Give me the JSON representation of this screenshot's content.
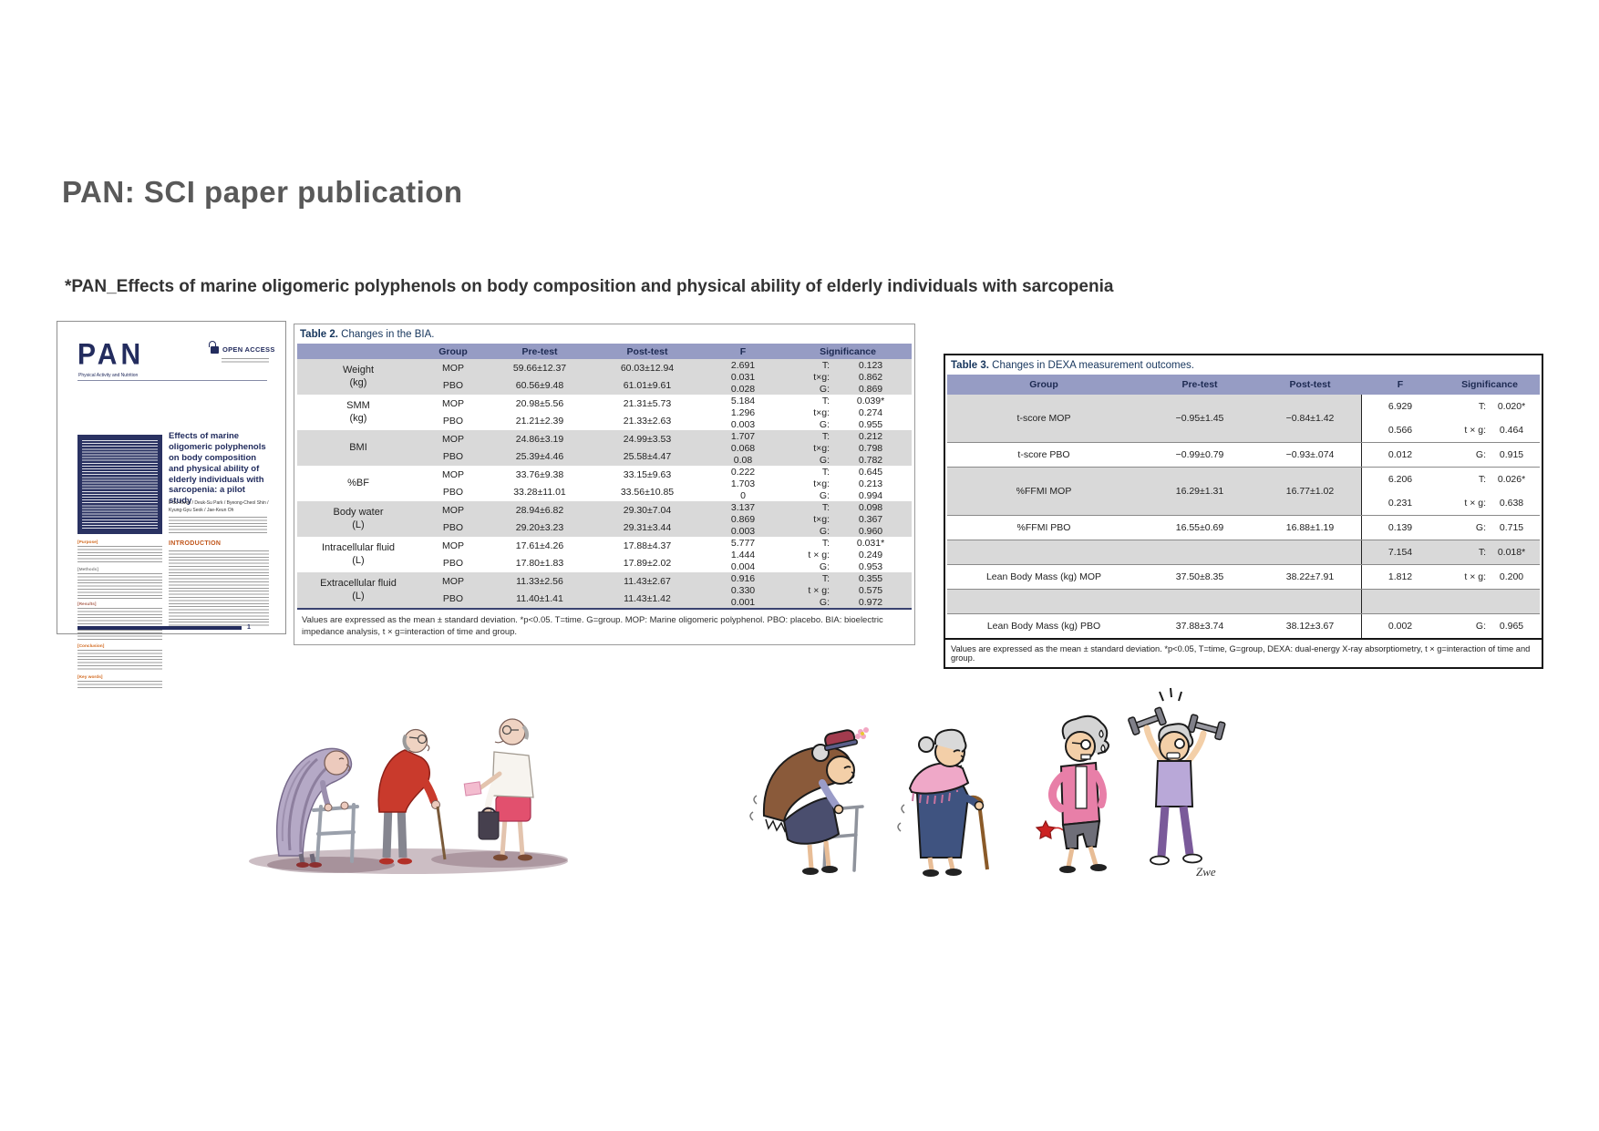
{
  "page": {
    "title": "PAN: SCI paper publication",
    "subtitle": "*PAN_Effects of marine oligomeric polyphenols on body composition and physical ability of elderly individuals with sarcopenia"
  },
  "colors": {
    "brand_navy": "#232c5e",
    "table_header_band": "#969cc4",
    "row_shade_gray": "#d9d9d9",
    "title_gray": "#595959",
    "accent_orange": "#c0551a"
  },
  "paper": {
    "logo": "PAN",
    "logo_sub": "Physical Activity and Nutrition",
    "open_access": "OPEN ACCESS",
    "title": "Effects of marine oligomeric polyphenols on body composition and physical ability of elderly individuals with sarcopenia: a pilot study",
    "authors": "Il-Su Kwon / Deuk-Su Park / Byeong-Cheol Shin / Kyung-Gyu Seok / Jae-Keun Oh",
    "abstract_sections": [
      "[Purpose]",
      "[Methods]",
      "[Results]",
      "[Conclusion]",
      "[Key words]"
    ],
    "intro_heading": "INTRODUCTION",
    "page_number": "1"
  },
  "table2": {
    "title_label": "Table 2.",
    "title_text": " Changes in the BIA.",
    "headers": [
      "",
      "Group",
      "Pre-test",
      "Post-test",
      "F",
      "Significance"
    ],
    "rows": [
      {
        "measure": "Weight",
        "unit": "(kg)",
        "shaded": true,
        "groups": [
          [
            "MOP",
            "59.66±12.37",
            "60.03±12.94"
          ],
          [
            "PBO",
            "60.56±9.48",
            "61.01±9.61"
          ]
        ],
        "f": [
          "2.691",
          "0.031",
          "0.028"
        ],
        "sig": [
          [
            "T:",
            "0.123"
          ],
          [
            "t×g:",
            "0.862"
          ],
          [
            "G:",
            "0.869"
          ]
        ]
      },
      {
        "measure": "SMM",
        "unit": "(kg)",
        "shaded": false,
        "groups": [
          [
            "MOP",
            "20.98±5.56",
            "21.31±5.73"
          ],
          [
            "PBO",
            "21.21±2.39",
            "21.33±2.63"
          ]
        ],
        "f": [
          "5.184",
          "1.296",
          "0.003"
        ],
        "sig": [
          [
            "T:",
            "0.039*"
          ],
          [
            "t×g:",
            "0.274"
          ],
          [
            "G:",
            "0.955"
          ]
        ]
      },
      {
        "measure": "BMI",
        "unit": "",
        "shaded": true,
        "groups": [
          [
            "MOP",
            "24.86±3.19",
            "24.99±3.53"
          ],
          [
            "PBO",
            "25.39±4.46",
            "25.58±4.47"
          ]
        ],
        "f": [
          "1.707",
          "0.068",
          "0.08"
        ],
        "sig": [
          [
            "T:",
            "0.212"
          ],
          [
            "t×g:",
            "0.798"
          ],
          [
            "G:",
            "0.782"
          ]
        ]
      },
      {
        "measure": "%BF",
        "unit": "",
        "shaded": false,
        "groups": [
          [
            "MOP",
            "33.76±9.38",
            "33.15±9.63"
          ],
          [
            "PBO",
            "33.28±11.01",
            "33.56±10.85"
          ]
        ],
        "f": [
          "0.222",
          "1.703",
          "0"
        ],
        "sig": [
          [
            "T:",
            "0.645"
          ],
          [
            "t×g:",
            "0.213"
          ],
          [
            "G:",
            "0.994"
          ]
        ]
      },
      {
        "measure": "Body water",
        "unit": "(L)",
        "shaded": true,
        "groups": [
          [
            "MOP",
            "28.94±6.82",
            "29.30±7.04"
          ],
          [
            "PBO",
            "29.20±3.23",
            "29.31±3.44"
          ]
        ],
        "f": [
          "3.137",
          "0.869",
          "0.003"
        ],
        "sig": [
          [
            "T:",
            "0.098"
          ],
          [
            "t×g:",
            "0.367"
          ],
          [
            "G:",
            "0.960"
          ]
        ]
      },
      {
        "measure": "Intracellular fluid",
        "unit": "(L)",
        "shaded": false,
        "groups": [
          [
            "MOP",
            "17.61±4.26",
            "17.88±4.37"
          ],
          [
            "PBO",
            "17.80±1.83",
            "17.89±2.02"
          ]
        ],
        "f": [
          "5.777",
          "1.444",
          "0.004"
        ],
        "sig": [
          [
            "T:",
            "0.031*"
          ],
          [
            "t × g:",
            "0.249"
          ],
          [
            "G:",
            "0.953"
          ]
        ]
      },
      {
        "measure": "Extracellular fluid",
        "unit": "(L)",
        "shaded": true,
        "groups": [
          [
            "MOP",
            "11.33±2.56",
            "11.43±2.67"
          ],
          [
            "PBO",
            "11.40±1.41",
            "11.43±1.42"
          ]
        ],
        "f": [
          "0.916",
          "0.330",
          "0.001"
        ],
        "sig": [
          [
            "T:",
            "0.355"
          ],
          [
            "t × g:",
            "0.575"
          ],
          [
            "G:",
            "0.972"
          ]
        ]
      }
    ],
    "footnote": "Values are expressed as the mean ± standard deviation. *p<0.05. T=time. G=group. MOP: Marine oligomeric polyphenol. PBO: placebo. BIA: bioelectric impedance analysis, t × g=interaction of time and group."
  },
  "table3": {
    "title_label": "Table 3.",
    "title_text": " Changes in DEXA measurement outcomes.",
    "headers": [
      "Group",
      "Pre-test",
      "Post-test",
      "F",
      "Significance"
    ],
    "rows": [
      {
        "group": "t-score MOP",
        "pre": "−0.95±1.45",
        "post": "−0.84±1.42",
        "f": "6.929",
        "sl": "T:",
        "sv": "0.020*",
        "shadeLeft": true,
        "shadeRight": false,
        "straddle": true,
        "lb": false
      },
      {
        "group": "",
        "pre": "",
        "post": "",
        "f": "0.566",
        "sl": "t × g:",
        "sv": "0.464",
        "shadeLeft": true,
        "shadeRight": false,
        "straddle": false,
        "lb": true
      },
      {
        "group": "t-score PBO",
        "pre": "−0.99±0.79",
        "post": "−0.93±.074",
        "f": "0.012",
        "sl": "G:",
        "sv": "0.915",
        "shadeLeft": false,
        "shadeRight": false,
        "straddle": false,
        "lb": true
      },
      {
        "group": "%FFMI MOP",
        "pre": "16.29±1.31",
        "post": "16.77±1.02",
        "f": "6.206",
        "sl": "T:",
        "sv": "0.026*",
        "shadeLeft": true,
        "shadeRight": false,
        "straddle": true,
        "lb": false
      },
      {
        "group": "",
        "pre": "",
        "post": "",
        "f": "0.231",
        "sl": "t × g:",
        "sv": "0.638",
        "shadeLeft": true,
        "shadeRight": false,
        "straddle": false,
        "lb": true
      },
      {
        "group": "%FFMI PBO",
        "pre": "16.55±0.69",
        "post": "16.88±1.19",
        "f": "0.139",
        "sl": "G:",
        "sv": "0.715",
        "shadeLeft": false,
        "shadeRight": false,
        "straddle": false,
        "lb": true
      },
      {
        "group": "",
        "pre": "",
        "post": "",
        "f": "7.154",
        "sl": "T:",
        "sv": "0.018*",
        "shadeLeft": true,
        "shadeRight": true,
        "straddle": false,
        "lb": true
      },
      {
        "group": "Lean Body Mass (kg) MOP",
        "pre": "37.50±8.35",
        "post": "38.22±7.91",
        "f": "1.812",
        "sl": "t × g:",
        "sv": "0.200",
        "shadeLeft": false,
        "shadeRight": false,
        "straddle": false,
        "lb": true
      },
      {
        "group": "",
        "pre": "",
        "post": "",
        "f": "",
        "sl": "",
        "sv": "",
        "shadeLeft": true,
        "shadeRight": true,
        "straddle": false,
        "lb": true
      },
      {
        "group": "Lean Body Mass (kg) PBO",
        "pre": "37.88±3.74",
        "post": "38.12±3.67",
        "f": "0.002",
        "sl": "G:",
        "sv": "0.965",
        "shadeLeft": false,
        "shadeRight": false,
        "straddle": false,
        "lb": false
      }
    ],
    "footnote": "Values are expressed as the mean ± standard deviation. *p<0.05, T=time, G=group, DEXA: dual-energy X-ray absorptiometry, t × g=interaction of time and group."
  },
  "cartoons": {
    "signature": "Zwe"
  }
}
